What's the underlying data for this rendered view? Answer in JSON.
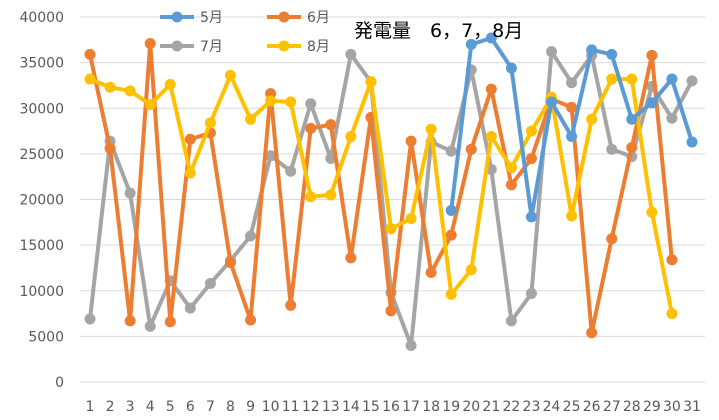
{
  "chart_data": {
    "type": "line",
    "title": "発電量　6，7，8月",
    "xlabel": "",
    "ylabel": "",
    "categories": [
      "1",
      "2",
      "3",
      "4",
      "5",
      "6",
      "7",
      "8",
      "9",
      "10",
      "11",
      "12",
      "13",
      "14",
      "15",
      "16",
      "17",
      "18",
      "19",
      "20",
      "21",
      "22",
      "23",
      "24",
      "25",
      "26",
      "27",
      "28",
      "29",
      "30",
      "31"
    ],
    "ylim": [
      0,
      40000
    ],
    "yticks": [
      "0",
      "5000",
      "10000",
      "15000",
      "20000",
      "25000",
      "30000",
      "35000",
      "40000"
    ],
    "grid": true,
    "legend_position": "top",
    "series": [
      {
        "name": "5月",
        "color": "#5b9bd5",
        "values": [
          null,
          null,
          null,
          null,
          null,
          null,
          null,
          null,
          null,
          null,
          null,
          null,
          null,
          null,
          null,
          null,
          null,
          null,
          18800,
          37000,
          37700,
          34400,
          18100,
          30700,
          26900,
          36400,
          35900,
          28800,
          30600,
          33200,
          26300
        ]
      },
      {
        "name": "6月",
        "color": "#ed7d31",
        "values": [
          35900,
          25600,
          6700,
          37100,
          6600,
          26600,
          27300,
          13100,
          6800,
          31600,
          8400,
          27800,
          28200,
          13600,
          29000,
          7800,
          26400,
          12000,
          16100,
          25500,
          32100,
          21600,
          24500,
          31000,
          30100,
          5400,
          15700,
          25700,
          35800,
          13400,
          null
        ]
      },
      {
        "name": "7月",
        "color": "#a5a5a5",
        "values": [
          6900,
          26400,
          20700,
          6100,
          11100,
          8100,
          10800,
          13300,
          16000,
          24800,
          23100,
          30500,
          24500,
          35900,
          32900,
          9800,
          4000,
          26300,
          25300,
          34200,
          23300,
          6700,
          9700,
          36200,
          32800,
          35800,
          25500,
          24700,
          32400,
          28900,
          33000
        ]
      },
      {
        "name": "8月",
        "color": "#ffc000",
        "values": [
          33200,
          32300,
          31900,
          30400,
          32600,
          22900,
          28400,
          33600,
          28800,
          30800,
          30700,
          20300,
          20500,
          26900,
          32900,
          16800,
          17900,
          27700,
          9600,
          12300,
          26900,
          23500,
          27500,
          31200,
          18200,
          28800,
          33200,
          33200,
          18600,
          7500,
          null
        ]
      }
    ]
  }
}
